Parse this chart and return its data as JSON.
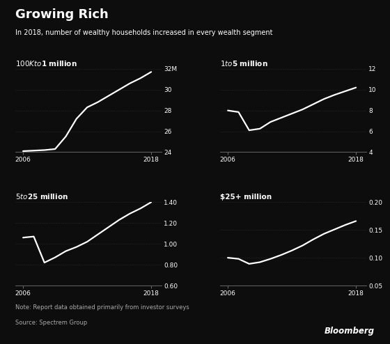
{
  "title": "Growing Rich",
  "subtitle": "In 2018, number of wealthy households increased in every wealth segment",
  "note": "Note: Report data obtained primarily from investor surveys",
  "source": "Source: Spectrem Group",
  "background_color": "#0d0d0d",
  "text_color": "#ffffff",
  "line_color": "#ffffff",
  "grid_color": "#3a3a3a",
  "panels": [
    {
      "label": "$100K to $1 million",
      "years": [
        2006,
        2007,
        2008,
        2009,
        2010,
        2011,
        2012,
        2013,
        2014,
        2015,
        2016,
        2017,
        2018
      ],
      "values": [
        24.1,
        24.15,
        24.2,
        24.3,
        25.5,
        27.2,
        28.3,
        28.8,
        29.4,
        30.0,
        30.6,
        31.1,
        31.7
      ],
      "ylim": [
        24,
        32
      ],
      "yticks": [
        24,
        26,
        28,
        30,
        32
      ],
      "ytick_labels": [
        "24",
        "26",
        "28",
        "30",
        "32M"
      ]
    },
    {
      "label": "$1 to $5 million",
      "years": [
        2006,
        2007,
        2008,
        2009,
        2010,
        2011,
        2012,
        2013,
        2014,
        2015,
        2016,
        2017,
        2018
      ],
      "values": [
        8.0,
        7.85,
        6.1,
        6.25,
        6.9,
        7.3,
        7.7,
        8.1,
        8.6,
        9.1,
        9.5,
        9.85,
        10.2
      ],
      "ylim": [
        4,
        12
      ],
      "yticks": [
        4,
        6,
        8,
        10,
        12
      ],
      "ytick_labels": [
        "4",
        "6",
        "8",
        "10",
        "12"
      ]
    },
    {
      "label": "$5 to $25 million",
      "years": [
        2006,
        2007,
        2008,
        2009,
        2010,
        2011,
        2012,
        2013,
        2014,
        2015,
        2016,
        2017,
        2018
      ],
      "values": [
        1.06,
        1.07,
        0.82,
        0.87,
        0.93,
        0.97,
        1.02,
        1.09,
        1.16,
        1.23,
        1.29,
        1.34,
        1.4
      ],
      "ylim": [
        0.6,
        1.4
      ],
      "yticks": [
        0.6,
        0.8,
        1.0,
        1.2,
        1.4
      ],
      "ytick_labels": [
        "0.60",
        "0.80",
        "1.00",
        "1.20",
        "1.40"
      ]
    },
    {
      "label": "$25+ million",
      "years": [
        2006,
        2007,
        2008,
        2009,
        2010,
        2011,
        2012,
        2013,
        2014,
        2015,
        2016,
        2017,
        2018
      ],
      "values": [
        0.1,
        0.098,
        0.089,
        0.092,
        0.098,
        0.105,
        0.113,
        0.122,
        0.133,
        0.143,
        0.151,
        0.159,
        0.166
      ],
      "ylim": [
        0.05,
        0.2
      ],
      "yticks": [
        0.05,
        0.1,
        0.15,
        0.2
      ],
      "ytick_labels": [
        "0.05",
        "0.10",
        "0.15",
        "0.20"
      ]
    }
  ]
}
